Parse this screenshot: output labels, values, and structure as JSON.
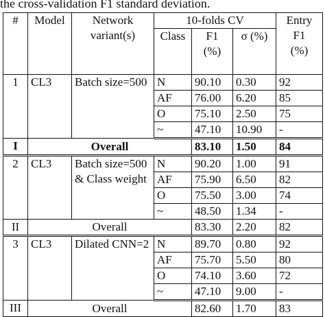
{
  "caption": "the cross-validation F1 standard deviation.",
  "headers": {
    "num": "#",
    "model": "Model",
    "variant_line1": "Network",
    "variant_line2": "variant(s)",
    "cv_group": "10-folds CV",
    "class": "Class",
    "f1_line1": "F1",
    "f1_line2": "(%)",
    "sigma": "σ (%)",
    "entry_line1": "Entry",
    "entry_line2": "F1",
    "entry_line3": "(%)"
  },
  "groups": [
    {
      "num": "1",
      "model": "CL3",
      "variant": "Batch size=500",
      "rows": [
        {
          "class": "N",
          "f1": "90.10",
          "sigma": "0.30",
          "entry": "92"
        },
        {
          "class": "AF",
          "f1": "76.00",
          "sigma": "6.20",
          "entry": "85"
        },
        {
          "class": "O",
          "f1": "75.10",
          "sigma": "2.50",
          "entry": "75"
        },
        {
          "class": "~",
          "f1": "47.10",
          "sigma": "10.90",
          "entry": "-"
        }
      ],
      "overall": {
        "num": "I",
        "label": "Overall",
        "f1": "83.10",
        "sigma": "1.50",
        "entry": "84"
      }
    },
    {
      "num": "2",
      "model": "CL3",
      "variant": "Batch size=500 & Class weight",
      "rows": [
        {
          "class": "N",
          "f1": "90.20",
          "sigma": "1.00",
          "entry": "91"
        },
        {
          "class": "AF",
          "f1": "75.90",
          "sigma": "6.50",
          "entry": "82"
        },
        {
          "class": "O",
          "f1": "75.50",
          "sigma": "3.00",
          "entry": "74"
        },
        {
          "class": "~",
          "f1": "48.50",
          "sigma": "1.34",
          "entry": "-"
        }
      ],
      "overall": {
        "num": "II",
        "label": "Overall",
        "f1": "83.30",
        "sigma": "2.20",
        "entry": "82"
      }
    },
    {
      "num": "3",
      "model": "CL3",
      "variant": "Dilated CNN=2",
      "rows": [
        {
          "class": "N",
          "f1": "89.70",
          "sigma": "0.80",
          "entry": "92"
        },
        {
          "class": "AF",
          "f1": "75.70",
          "sigma": "5.50",
          "entry": "80"
        },
        {
          "class": "O",
          "f1": "74.10",
          "sigma": "3.60",
          "entry": "72"
        },
        {
          "class": "~",
          "f1": "47.10",
          "sigma": "9.00",
          "entry": "-"
        }
      ],
      "overall": {
        "num": "III",
        "label": "Overall",
        "f1": "82.60",
        "sigma": "1.70",
        "entry": "83"
      }
    }
  ]
}
